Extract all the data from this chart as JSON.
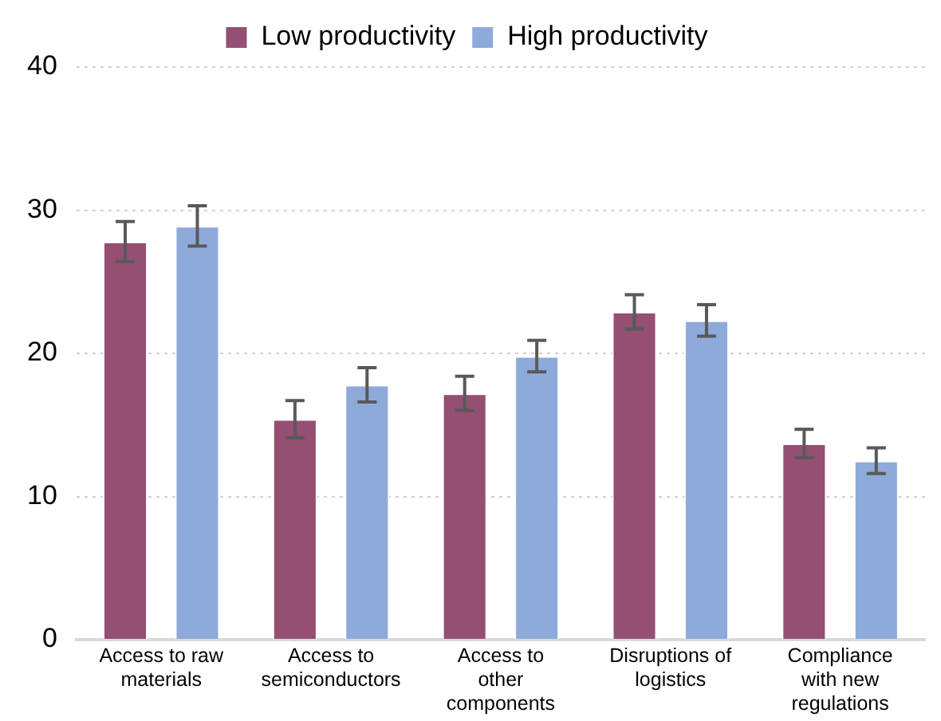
{
  "chart_data": {
    "type": "bar",
    "categories": [
      "Access to raw materials",
      "Access to semiconductors",
      "Access to other components",
      "Disruptions of logistics",
      "Compliance with new regulations"
    ],
    "series": [
      {
        "name": "Low productivity",
        "color": "#954f72",
        "values": [
          27.8,
          15.4,
          17.2,
          22.9,
          13.7
        ],
        "errors": [
          1.4,
          1.3,
          1.2,
          1.2,
          1.0
        ]
      },
      {
        "name": "High productivity",
        "color": "#8eaadb",
        "values": [
          28.9,
          17.8,
          19.8,
          22.3,
          12.5
        ],
        "errors": [
          1.4,
          1.2,
          1.1,
          1.1,
          0.9
        ]
      }
    ],
    "ylim": [
      0,
      40
    ],
    "yticks": [
      0,
      10,
      20,
      30,
      40
    ],
    "grid": "y",
    "legend": "top"
  }
}
